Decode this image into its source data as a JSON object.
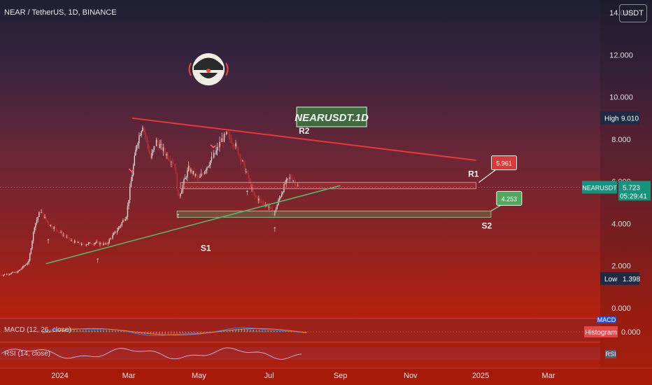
{
  "header": {
    "symbol_title": "NEAR / TetherUS, 1D, BINANCE",
    "currency_button": "USDT"
  },
  "chart_data": {
    "type": "candlestick",
    "title": "NEARUSDT.1D",
    "y_ticks": [
      "14.000",
      "12.000",
      "10.000",
      "8.000",
      "6.000",
      "4.000",
      "2.000",
      "0.000"
    ],
    "y_tick_values": [
      14,
      12,
      10,
      8,
      6,
      4,
      2,
      0
    ],
    "ylim": [
      -0.4,
      14.6
    ],
    "x_ticks": [
      "2024",
      "Mar",
      "May",
      "Jul",
      "Sep",
      "Nov",
      "2025",
      "Mar"
    ],
    "x_tick_dates": [
      "2024-01-01",
      "2024-03-01",
      "2024-05-01",
      "2024-07-01",
      "2024-09-01",
      "2024-11-01",
      "2025-01-01",
      "2025-03-01"
    ],
    "xlim": [
      "2023-11-10",
      "2025-04-15"
    ],
    "candles_start": "2023-11-10",
    "candles_end": "2024-07-27",
    "price_path": [
      [
        "2023-11-10",
        1.55
      ],
      [
        "2023-11-25",
        1.7
      ],
      [
        "2023-12-05",
        2.2
      ],
      [
        "2023-12-10",
        3.9
      ],
      [
        "2023-12-15",
        4.6
      ],
      [
        "2023-12-22",
        4.0
      ],
      [
        "2024-01-01",
        3.6
      ],
      [
        "2024-01-10",
        3.2
      ],
      [
        "2024-01-20",
        3.0
      ],
      [
        "2024-02-01",
        3.1
      ],
      [
        "2024-02-10",
        3.0
      ],
      [
        "2024-02-20",
        3.7
      ],
      [
        "2024-02-28",
        4.4
      ],
      [
        "2024-03-03",
        6.0
      ],
      [
        "2024-03-08",
        7.8
      ],
      [
        "2024-03-13",
        8.7
      ],
      [
        "2024-03-20",
        7.1
      ],
      [
        "2024-03-25",
        7.9
      ],
      [
        "2024-04-01",
        7.4
      ],
      [
        "2024-04-10",
        6.8
      ],
      [
        "2024-04-13",
        5.2
      ],
      [
        "2024-04-22",
        6.6
      ],
      [
        "2024-05-01",
        6.1
      ],
      [
        "2024-05-10",
        6.9
      ],
      [
        "2024-05-15",
        7.3
      ],
      [
        "2024-05-20",
        7.9
      ],
      [
        "2024-05-25",
        8.2
      ],
      [
        "2024-06-01",
        7.8
      ],
      [
        "2024-06-05",
        7.3
      ],
      [
        "2024-06-12",
        6.3
      ],
      [
        "2024-06-18",
        5.3
      ],
      [
        "2024-06-25",
        5.0
      ],
      [
        "2024-07-01",
        4.8
      ],
      [
        "2024-07-05",
        4.4
      ],
      [
        "2024-07-10",
        5.2
      ],
      [
        "2024-07-15",
        5.9
      ],
      [
        "2024-07-20",
        6.2
      ],
      [
        "2024-07-27",
        5.723
      ]
    ],
    "current_price": "5.723",
    "countdown": "05:29:41",
    "high": {
      "label": "High",
      "value": "9.010",
      "price": 9.01
    },
    "low": {
      "label": "Low",
      "value": "1.398",
      "price": 1.398
    },
    "symbol_tag": "NEARUSDT",
    "lines": [
      {
        "name": "R2",
        "kind": "resistance",
        "color": "#e03a3a",
        "from": [
          "2024-03-04",
          9.0
        ],
        "to": [
          "2024-12-28",
          7.0
        ]
      },
      {
        "name": "S1",
        "kind": "support",
        "color": "#5fb06a",
        "from": [
          "2023-12-20",
          2.1
        ],
        "to": [
          "2024-09-01",
          5.8
        ]
      }
    ],
    "zones": [
      {
        "name": "R1",
        "kind": "resistance",
        "value_label": "5.961",
        "value": 5.961,
        "from": "2024-04-15",
        "to": "2024-12-28",
        "low": 5.65,
        "high": 5.95
      },
      {
        "name": "S2",
        "kind": "support",
        "value_label": "4.253",
        "value": 4.253,
        "from": "2024-04-12",
        "to": "2025-01-10",
        "low": 4.3,
        "high": 4.6
      }
    ],
    "pivot_arrows_up": [
      "2023-12-22",
      "2024-02-03",
      "2024-04-13",
      "2024-06-12",
      "2024-07-06"
    ],
    "pivot_arrows_down": [
      "2024-03-03",
      "2024-05-13"
    ],
    "macd": {
      "label": "MACD (12, 26, close)",
      "tags": [
        "MACD",
        "Histogram"
      ],
      "value": "0.000"
    },
    "rsi": {
      "label": "RSI (14, close)",
      "tag": "RSI"
    }
  },
  "colors": {
    "resistance": "#e03a3a",
    "support": "#5fb06a",
    "candle_up": "#d9d9d9",
    "candle_down": "#c03030"
  }
}
